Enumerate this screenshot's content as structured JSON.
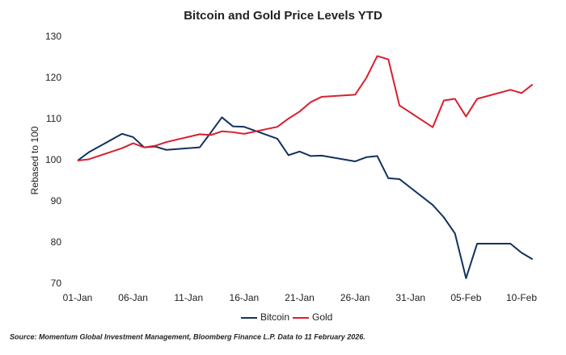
{
  "chart_data": {
    "type": "line",
    "title": "Bitcoin and Gold Price Levels YTD",
    "y_label": "Rebased to 100",
    "source": "Source: Momentum Global Investment Management, Bloomberg Finance L.P. Data to 11 February 2026.",
    "x": [
      "01-Jan",
      "02-Jan",
      "05-Jan",
      "06-Jan",
      "07-Jan",
      "08-Jan",
      "09-Jan",
      "12-Jan",
      "13-Jan",
      "14-Jan",
      "15-Jan",
      "16-Jan",
      "19-Jan",
      "20-Jan",
      "21-Jan",
      "22-Jan",
      "23-Jan",
      "26-Jan",
      "27-Jan",
      "28-Jan",
      "29-Jan",
      "30-Jan",
      "02-Feb",
      "03-Feb",
      "04-Feb",
      "05-Feb",
      "06-Feb",
      "09-Feb",
      "10-Feb",
      "11-Feb"
    ],
    "xticks": [
      "01-Jan",
      "06-Jan",
      "11-Jan",
      "16-Jan",
      "21-Jan",
      "26-Jan",
      "31-Jan",
      "05-Feb",
      "10-Feb"
    ],
    "ylim": [
      70,
      130
    ],
    "yticks": [
      70,
      80,
      90,
      100,
      110,
      120,
      130
    ],
    "grid": false,
    "legend": "bottom",
    "series": [
      {
        "name": "Bitcoin",
        "color": "#12325e",
        "values": [
          100,
          102,
          106.5,
          105.7,
          103.2,
          103.4,
          102.6,
          103.2,
          106.8,
          110.5,
          108.3,
          108.2,
          105.3,
          101.3,
          102.2,
          101.1,
          101.2,
          99.8,
          100.8,
          101.1,
          95.7,
          95.5,
          89.2,
          86.2,
          82.3,
          71.4,
          79.8,
          79.8,
          77.6,
          76
        ]
      },
      {
        "name": "Gold",
        "color": "#d7202e",
        "values": [
          100,
          100.3,
          103,
          104.2,
          103.2,
          103.6,
          104.5,
          106.4,
          106.2,
          107.1,
          106.9,
          106.5,
          108.2,
          110.2,
          111.9,
          114.2,
          115.5,
          116,
          120,
          125.4,
          124.6,
          113.4,
          108.1,
          114.6,
          115,
          110.7,
          115,
          117.2,
          116.4,
          118.5
        ]
      }
    ]
  }
}
